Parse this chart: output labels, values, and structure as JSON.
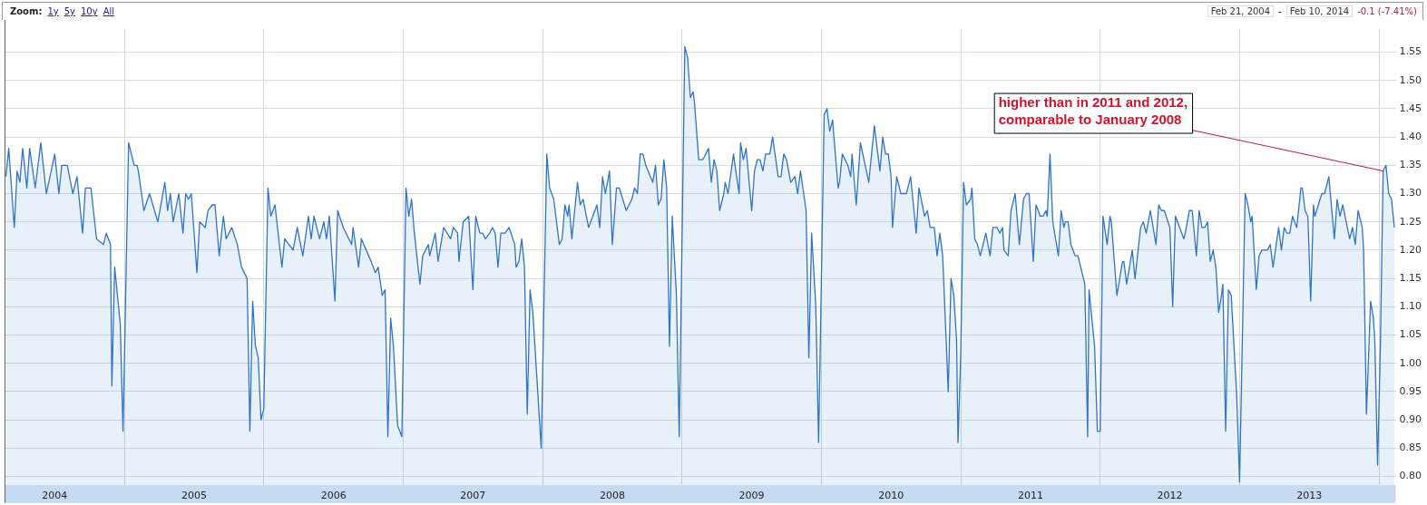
{
  "chart_data": {
    "type": "area",
    "annotations": [
      "Zoom:",
      "1y",
      "5y",
      "10y",
      "All",
      "Feb 21, 2004",
      "-",
      "Feb 10, 2014",
      "-0.1 (-7.41%)",
      {
        "text": "higher than in 2011 and 2012, comparable to January 2008",
        "x": 2014.03,
        "y": 1.34
      }
    ],
    "xlim": [
      2004.14,
      2014.12
    ],
    "xticks": [
      {
        "value": 2004.5,
        "label": "2004"
      },
      {
        "value": 2005,
        "label": null
      },
      {
        "value": 2005.5,
        "label": "2005"
      },
      {
        "value": 2006,
        "label": null
      },
      {
        "value": 2006.5,
        "label": "2006"
      },
      {
        "value": 2007,
        "label": null
      },
      {
        "value": 2007.5,
        "label": "2007"
      },
      {
        "value": 2008,
        "label": null
      },
      {
        "value": 2008.5,
        "label": "2008"
      },
      {
        "value": 2009,
        "label": null
      },
      {
        "value": 2009.5,
        "label": "2009"
      },
      {
        "value": 2010,
        "label": null
      },
      {
        "value": 2010.5,
        "label": "2010"
      },
      {
        "value": 2011,
        "label": null
      },
      {
        "value": 2011.5,
        "label": "2011"
      },
      {
        "value": 2012,
        "label": null
      },
      {
        "value": 2012.5,
        "label": "2012"
      },
      {
        "value": 2013,
        "label": null
      },
      {
        "value": 2013.5,
        "label": "2013"
      },
      {
        "value": 2014,
        "label": null
      }
    ],
    "ylim": [
      0.785,
      1.59
    ],
    "yticks": [
      {
        "value": 0.8,
        "label": "0.80"
      },
      0.85,
      {
        "value": 0.9,
        "label": "0.90"
      },
      0.95,
      {
        "value": 1.0,
        "label": "1.00"
      },
      1.05,
      {
        "value": 1.1,
        "label": "1.10"
      },
      1.15,
      {
        "value": 1.2,
        "label": "1.20"
      },
      1.25,
      {
        "value": 1.3,
        "label": "1.30"
      },
      1.35,
      {
        "value": 1.4,
        "label": "1.40"
      },
      1.45,
      {
        "value": 1.5,
        "label": "1.50"
      },
      1.55
    ],
    "grid": true,
    "series": [
      {
        "color": "#2f74c9",
        "x": [
          2004.15,
          2004.17,
          2004.21,
          2004.23,
          2004.25,
          2004.27,
          2004.3,
          2004.32,
          2004.36,
          2004.4,
          2004.44,
          2004.5,
          2004.53,
          2004.55,
          2004.59,
          2004.63,
          2004.66,
          2004.7,
          2004.72,
          2004.76,
          2004.8,
          2004.85,
          2004.87,
          2004.9,
          2004.91,
          2004.93,
          2004.97,
          2004.99,
          2005.03,
          2005.07,
          2005.09,
          2005.1,
          2005.14,
          2005.18,
          2005.24,
          2005.29,
          2005.31,
          2005.33,
          2005.35,
          2005.39,
          2005.42,
          2005.44,
          2005.46,
          2005.48,
          2005.52,
          2005.54,
          2005.58,
          2005.6,
          2005.63,
          2005.65,
          2005.68,
          2005.71,
          2005.73,
          2005.77,
          2005.81,
          2005.84,
          2005.88,
          2005.9,
          2005.92,
          2005.94,
          2005.96,
          2005.98,
          2006.0,
          2006.03,
          2006.05,
          2006.08,
          2006.13,
          2006.15,
          2006.21,
          2006.24,
          2006.28,
          2006.32,
          2006.34,
          2006.36,
          2006.4,
          2006.43,
          2006.45,
          2006.47,
          2006.51,
          2006.53,
          2006.57,
          2006.63,
          2006.64,
          2006.68,
          2006.7,
          2006.77,
          2006.8,
          2006.82,
          2006.85,
          2006.87,
          2006.89,
          2006.91,
          2006.93,
          2006.96,
          2006.99,
          2007.02,
          2007.04,
          2007.06,
          2007.08,
          2007.12,
          2007.14,
          2007.18,
          2007.19,
          2007.23,
          2007.25,
          2007.29,
          2007.34,
          2007.36,
          2007.39,
          2007.4,
          2007.43,
          2007.47,
          2007.5,
          2007.52,
          2007.55,
          2007.57,
          2007.59,
          2007.62,
          2007.64,
          2007.66,
          2007.68,
          2007.7,
          2007.73,
          2007.76,
          2007.8,
          2007.81,
          2007.83,
          2007.85,
          2007.87,
          2007.89,
          2007.91,
          2007.93,
          2007.96,
          2007.99,
          2008.03,
          2008.05,
          2008.08,
          2008.12,
          2008.14,
          2008.16,
          2008.18,
          2008.19,
          2008.21,
          2008.25,
          2008.27,
          2008.29,
          2008.33,
          2008.39,
          2008.41,
          2008.43,
          2008.45,
          2008.48,
          2008.5,
          2008.53,
          2008.55,
          2008.6,
          2008.64,
          2008.66,
          2008.68,
          2008.7,
          2008.72,
          2008.74,
          2008.79,
          2008.81,
          2008.83,
          2008.85,
          2008.87,
          2008.89,
          2008.91,
          2008.93,
          2008.96,
          2008.98,
          2009.02,
          2009.04,
          2009.06,
          2009.08,
          2009.09,
          2009.12,
          2009.15,
          2009.19,
          2009.21,
          2009.23,
          2009.25,
          2009.27,
          2009.3,
          2009.31,
          2009.33,
          2009.37,
          2009.38,
          2009.41,
          2009.42,
          2009.44,
          2009.46,
          2009.5,
          2009.52,
          2009.54,
          2009.56,
          2009.58,
          2009.6,
          2009.63,
          2009.65,
          2009.69,
          2009.71,
          2009.73,
          2009.75,
          2009.78,
          2009.81,
          2009.83,
          2009.85,
          2009.89,
          2009.91,
          2009.93,
          2009.96,
          2009.98,
          2010.02,
          2010.04,
          2010.06,
          2010.08,
          2010.12,
          2010.13,
          2010.15,
          2010.19,
          2010.21,
          2010.22,
          2010.25,
          2010.28,
          2010.34,
          2010.38,
          2010.42,
          2010.44,
          2010.46,
          2010.48,
          2010.5,
          2010.51,
          2010.54,
          2010.56,
          2010.57,
          2010.61,
          2010.64,
          2010.68,
          2010.7,
          2010.74,
          2010.76,
          2010.78,
          2010.81,
          2010.83,
          2010.85,
          2010.87,
          2010.91,
          2010.93,
          2010.95,
          2010.97,
          2010.98,
          2011.0,
          2011.02,
          2011.04,
          2011.07,
          2011.08,
          2011.1,
          2011.12,
          2011.14,
          2011.18,
          2011.21,
          2011.23,
          2011.26,
          2011.28,
          2011.3,
          2011.31,
          2011.34,
          2011.36,
          2011.39,
          2011.42,
          2011.45,
          2011.47,
          2011.49,
          2011.52,
          2011.54,
          2011.57,
          2011.59,
          2011.61,
          2011.62,
          2011.64,
          2011.66,
          2011.7,
          2011.72,
          2011.74,
          2011.75,
          2011.77,
          2011.79,
          2011.82,
          2011.84,
          2011.89,
          2011.91,
          2011.92,
          2011.96,
          2011.98,
          2012.0,
          2012.02,
          2012.05,
          2012.07,
          2012.08,
          2012.12,
          2012.16,
          2012.17,
          2012.19,
          2012.23,
          2012.25,
          2012.29,
          2012.31,
          2012.33,
          2012.36,
          2012.4,
          2012.42,
          2012.44,
          2012.46,
          2012.5,
          2012.52,
          2012.54,
          2012.57,
          2012.6,
          2012.61,
          2012.64,
          2012.66,
          2012.69,
          2012.71,
          2012.73,
          2012.75,
          2012.77,
          2012.79,
          2012.81,
          2012.83,
          2012.85,
          2012.87,
          2012.88,
          2012.9,
          2012.92,
          2012.94,
          2012.98,
          2013.0,
          2013.04,
          2013.06,
          2013.08,
          2013.09,
          2013.12,
          2013.14,
          2013.16,
          2013.2,
          2013.22,
          2013.24,
          2013.28,
          2013.3,
          2013.32,
          2013.34,
          2013.36,
          2013.38,
          2013.41,
          2013.44,
          2013.45,
          2013.47,
          2013.49,
          2013.51,
          2013.53,
          2013.54,
          2013.59,
          2013.61,
          2013.64,
          2013.68,
          2013.7,
          2013.72,
          2013.74,
          2013.79,
          2013.81,
          2013.83,
          2013.85,
          2013.88,
          2013.89,
          2013.91,
          2013.94,
          2013.96,
          2013.97,
          2013.99,
          2014.01,
          2014.03,
          2014.05,
          2014.07,
          2014.09,
          2014.11
        ],
        "values": [
          1.33,
          1.38,
          1.24,
          1.34,
          1.32,
          1.38,
          1.31,
          1.38,
          1.31,
          1.39,
          1.3,
          1.37,
          1.3,
          1.35,
          1.35,
          1.3,
          1.33,
          1.23,
          1.31,
          1.31,
          1.22,
          1.21,
          1.23,
          1.21,
          0.96,
          1.17,
          1.07,
          0.88,
          1.39,
          1.35,
          1.35,
          1.34,
          1.27,
          1.3,
          1.25,
          1.32,
          1.27,
          1.3,
          1.25,
          1.3,
          1.23,
          1.3,
          1.29,
          1.3,
          1.16,
          1.25,
          1.24,
          1.27,
          1.28,
          1.28,
          1.19,
          1.26,
          1.22,
          1.24,
          1.21,
          1.17,
          1.15,
          0.88,
          1.11,
          1.03,
          1.01,
          0.9,
          0.92,
          1.31,
          1.26,
          1.28,
          1.17,
          1.22,
          1.2,
          1.24,
          1.19,
          1.26,
          1.22,
          1.26,
          1.22,
          1.25,
          1.22,
          1.26,
          1.11,
          1.27,
          1.24,
          1.21,
          1.24,
          1.17,
          1.22,
          1.18,
          1.16,
          1.17,
          1.12,
          1.13,
          0.87,
          1.08,
          1.03,
          0.89,
          0.87,
          1.31,
          1.26,
          1.29,
          1.23,
          1.14,
          1.19,
          1.21,
          1.19,
          1.23,
          1.18,
          1.24,
          1.22,
          1.24,
          1.23,
          1.18,
          1.25,
          1.26,
          1.13,
          1.26,
          1.23,
          1.23,
          1.22,
          1.23,
          1.24,
          1.23,
          1.17,
          1.23,
          1.23,
          1.24,
          1.21,
          1.17,
          1.18,
          1.22,
          1.17,
          0.91,
          1.13,
          1.09,
          0.97,
          0.85,
          1.37,
          1.31,
          1.29,
          1.21,
          1.22,
          1.28,
          1.26,
          1.28,
          1.22,
          1.32,
          1.28,
          1.29,
          1.24,
          1.28,
          1.24,
          1.33,
          1.3,
          1.34,
          1.21,
          1.31,
          1.31,
          1.27,
          1.29,
          1.31,
          1.3,
          1.37,
          1.37,
          1.35,
          1.32,
          1.35,
          1.28,
          1.29,
          1.36,
          1.31,
          1.03,
          1.26,
          1.12,
          0.87,
          1.56,
          1.54,
          1.47,
          1.48,
          1.46,
          1.36,
          1.36,
          1.38,
          1.32,
          1.36,
          1.34,
          1.27,
          1.3,
          1.32,
          1.3,
          1.37,
          1.35,
          1.3,
          1.39,
          1.36,
          1.38,
          1.27,
          1.34,
          1.36,
          1.36,
          1.34,
          1.37,
          1.37,
          1.4,
          1.33,
          1.33,
          1.37,
          1.36,
          1.32,
          1.33,
          1.3,
          1.34,
          1.27,
          1.01,
          1.23,
          1.1,
          0.86,
          1.44,
          1.45,
          1.41,
          1.43,
          1.31,
          1.32,
          1.37,
          1.35,
          1.33,
          1.37,
          1.28,
          1.39,
          1.32,
          1.42,
          1.34,
          1.4,
          1.37,
          1.37,
          1.33,
          1.24,
          1.33,
          1.31,
          1.3,
          1.3,
          1.33,
          1.23,
          1.31,
          1.26,
          1.27,
          1.24,
          1.24,
          1.19,
          1.23,
          1.19,
          0.95,
          1.15,
          1.12,
          1.04,
          0.86,
          1.02,
          1.32,
          1.28,
          1.29,
          1.31,
          1.22,
          1.21,
          1.19,
          1.23,
          1.19,
          1.24,
          1.24,
          1.23,
          1.24,
          1.2,
          1.19,
          1.27,
          1.3,
          1.21,
          1.29,
          1.3,
          1.3,
          1.18,
          1.28,
          1.26,
          1.26,
          1.27,
          1.26,
          1.37,
          1.25,
          1.19,
          1.27,
          1.24,
          1.25,
          1.25,
          1.21,
          1.19,
          1.19,
          1.14,
          0.87,
          1.13,
          1.03,
          0.88,
          0.88,
          1.26,
          1.21,
          1.26,
          1.25,
          1.12,
          1.18,
          1.18,
          1.14,
          1.2,
          1.15,
          1.24,
          1.25,
          1.23,
          1.27,
          1.21,
          1.28,
          1.27,
          1.27,
          1.24,
          1.1,
          1.26,
          1.24,
          1.22,
          1.23,
          1.27,
          1.27,
          1.19,
          1.27,
          1.24,
          1.24,
          1.25,
          1.18,
          1.2,
          1.17,
          1.09,
          1.12,
          1.14,
          0.88,
          1.13,
          1.12,
          0.94,
          0.79,
          1.3,
          1.28,
          1.25,
          1.26,
          1.13,
          1.19,
          1.2,
          1.2,
          1.21,
          1.17,
          1.24,
          1.2,
          1.24,
          1.23,
          1.23,
          1.26,
          1.24,
          1.31,
          1.31,
          1.27,
          1.26,
          1.11,
          1.28,
          1.26,
          1.3,
          1.3,
          1.33,
          1.22,
          1.29,
          1.26,
          1.28,
          1.22,
          1.24,
          1.21,
          1.27,
          1.24,
          1.2,
          0.91,
          1.11,
          1.08,
          1.04,
          0.82,
          1.03,
          1.34,
          1.35,
          1.3,
          1.29,
          1.24
        ]
      }
    ]
  }
}
